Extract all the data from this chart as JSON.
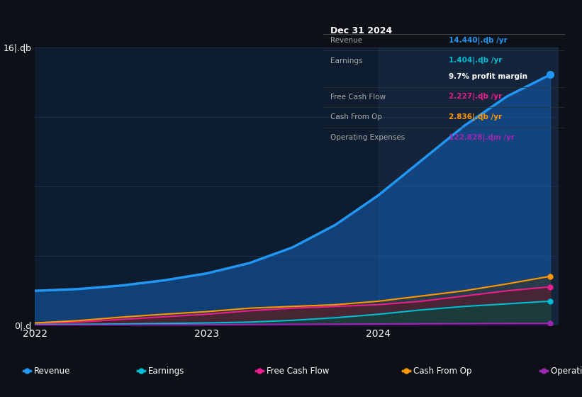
{
  "background_color": "#0d1117",
  "chart_bg_color": "#0d1c2e",
  "grid_color": "#1e3050",
  "highlight_color": "#1a2a45",
  "series": {
    "Revenue": {
      "color": "#2196f3",
      "fill_color": "#1565c0",
      "x": [
        2022.0,
        2022.25,
        2022.5,
        2022.75,
        2023.0,
        2023.25,
        2023.5,
        2023.75,
        2024.0,
        2024.25,
        2024.5,
        2024.75,
        2025.0
      ],
      "y": [
        2.0,
        2.1,
        2.3,
        2.6,
        3.0,
        3.6,
        4.5,
        5.8,
        7.5,
        9.5,
        11.5,
        13.2,
        14.44
      ]
    },
    "Earnings": {
      "color": "#00bcd4",
      "fill_color": "#004d40",
      "x": [
        2022.0,
        2022.25,
        2022.5,
        2022.75,
        2023.0,
        2023.25,
        2023.5,
        2023.75,
        2024.0,
        2024.25,
        2024.5,
        2024.75,
        2025.0
      ],
      "y": [
        0.05,
        0.07,
        0.09,
        0.12,
        0.15,
        0.2,
        0.3,
        0.45,
        0.65,
        0.9,
        1.1,
        1.25,
        1.404
      ]
    },
    "FreeCashFlow": {
      "color": "#e91e8c",
      "fill_color": "#5d1049",
      "x": [
        2022.0,
        2022.25,
        2022.5,
        2022.75,
        2023.0,
        2023.25,
        2023.5,
        2023.75,
        2024.0,
        2024.25,
        2024.5,
        2024.75,
        2025.0
      ],
      "y": [
        0.1,
        0.2,
        0.35,
        0.5,
        0.65,
        0.85,
        1.0,
        1.1,
        1.2,
        1.4,
        1.7,
        2.0,
        2.227
      ]
    },
    "CashFromOp": {
      "color": "#ff9800",
      "fill_color": "#4a3000",
      "x": [
        2022.0,
        2022.25,
        2022.5,
        2022.75,
        2023.0,
        2023.25,
        2023.5,
        2023.75,
        2024.0,
        2024.25,
        2024.5,
        2024.75,
        2025.0
      ],
      "y": [
        0.15,
        0.28,
        0.48,
        0.65,
        0.8,
        1.0,
        1.1,
        1.2,
        1.4,
        1.7,
        2.0,
        2.4,
        2.836
      ]
    },
    "OperatingExpenses": {
      "color": "#9c27b0",
      "fill_color": "#2a0040",
      "x": [
        2022.0,
        2022.25,
        2022.5,
        2022.75,
        2023.0,
        2023.25,
        2023.5,
        2023.75,
        2024.0,
        2024.25,
        2024.5,
        2024.75,
        2025.0
      ],
      "y": [
        0.02,
        0.025,
        0.03,
        0.04,
        0.05,
        0.06,
        0.07,
        0.08,
        0.09,
        0.1,
        0.11,
        0.12,
        0.1228
      ]
    }
  },
  "ylim": [
    0,
    16
  ],
  "xlim": [
    2022.0,
    2025.05
  ],
  "xticks": [
    2022,
    2023,
    2024
  ],
  "highlight_x": 2024.0,
  "table": {
    "title": "Dec 31 2024",
    "title_color": "#ffffff",
    "bg_color": "#000000",
    "border_color": "#333333",
    "rows": [
      {
        "label": "Revenue",
        "label_color": "#aaaaaa",
        "value": "14.440|.ɖb /yr",
        "value_color": "#2196f3"
      },
      {
        "label": "Earnings",
        "label_color": "#aaaaaa",
        "value": "1.404|.ɖb /yr",
        "value_color": "#00bcd4"
      },
      {
        "label": "",
        "label_color": "#aaaaaa",
        "value": "9.7% profit margin",
        "value_color": "#ffffff"
      },
      {
        "label": "Free Cash Flow",
        "label_color": "#aaaaaa",
        "value": "2.227|.ɖb /yr",
        "value_color": "#e91e8c"
      },
      {
        "label": "Cash From Op",
        "label_color": "#aaaaaa",
        "value": "2.836|.ɖb /yr",
        "value_color": "#ff9800"
      },
      {
        "label": "Operating Expenses",
        "label_color": "#aaaaaa",
        "value": "122.828|.ɖm /yr",
        "value_color": "#9c27b0"
      }
    ]
  },
  "legend": [
    {
      "label": "Revenue",
      "color": "#2196f3"
    },
    {
      "label": "Earnings",
      "color": "#00bcd4"
    },
    {
      "label": "Free Cash Flow",
      "color": "#e91e8c"
    },
    {
      "label": "Cash From Op",
      "color": "#ff9800"
    },
    {
      "label": "Operating Expenses",
      "color": "#9c27b0"
    }
  ]
}
